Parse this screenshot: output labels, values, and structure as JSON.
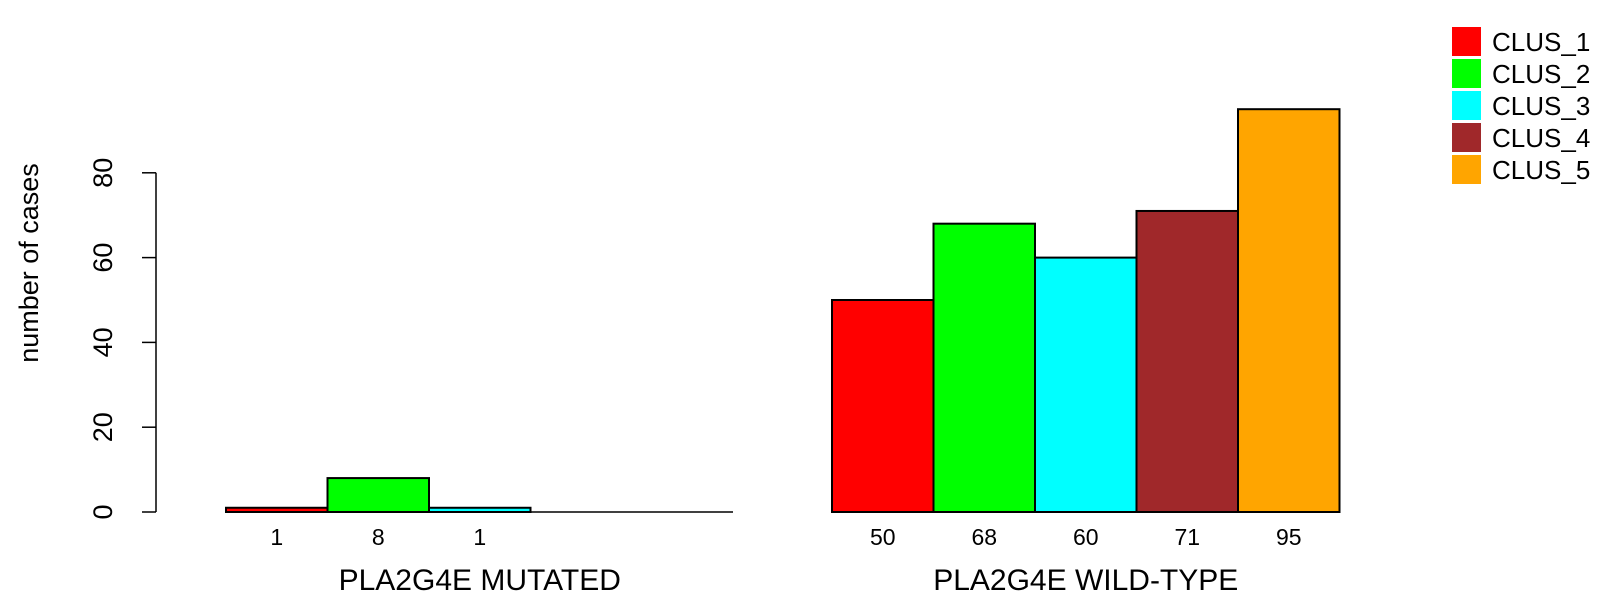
{
  "chart_data": {
    "type": "bar",
    "ylabel": "number of cases",
    "ylim": [
      0,
      95
    ],
    "yticks": [
      0,
      20,
      40,
      60,
      80
    ],
    "groups": [
      {
        "label": "PLA2G4E MUTATED",
        "values": [
          1,
          8,
          1,
          0,
          0
        ],
        "value_labels": [
          "1",
          "8",
          "1",
          "",
          ""
        ]
      },
      {
        "label": "PLA2G4E WILD-TYPE",
        "values": [
          50,
          68,
          60,
          71,
          95
        ],
        "value_labels": [
          "50",
          "68",
          "60",
          "71",
          "95"
        ]
      }
    ],
    "series": [
      {
        "name": "CLUS_1",
        "color": "#ff0000"
      },
      {
        "name": "CLUS_2",
        "color": "#00ff00"
      },
      {
        "name": "CLUS_3",
        "color": "#00ffff"
      },
      {
        "name": "CLUS_4",
        "color": "#a0282a"
      },
      {
        "name": "CLUS_5",
        "color": "#ffa500"
      }
    ],
    "legend_position": "top-right",
    "grid": false
  }
}
